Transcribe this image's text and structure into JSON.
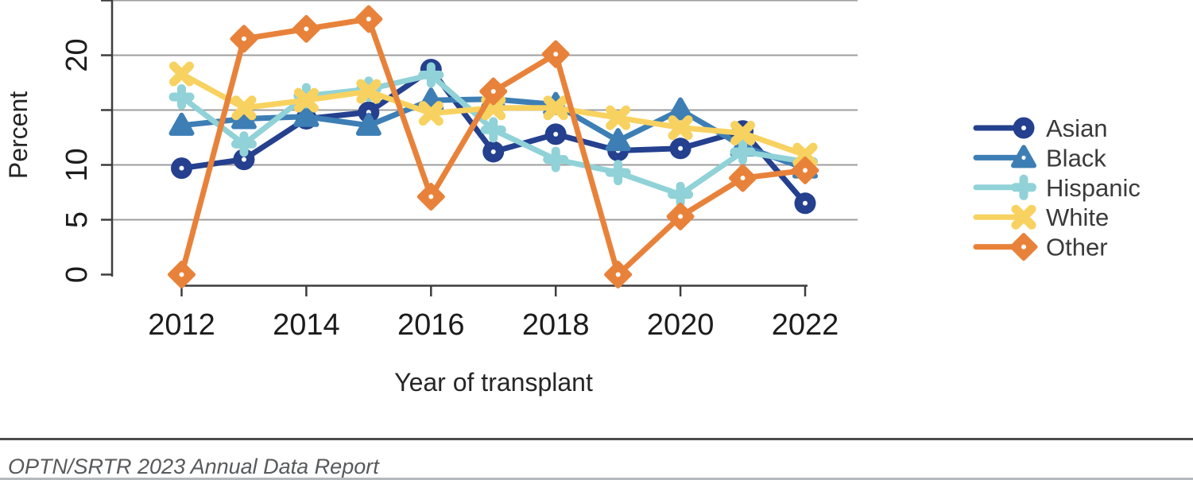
{
  "chart_data": {
    "type": "line",
    "title": "",
    "xlabel": "Year of transplant",
    "ylabel": "Percent",
    "x": [
      2012,
      2013,
      2014,
      2015,
      2016,
      2017,
      2018,
      2019,
      2020,
      2021,
      2022
    ],
    "x_ticks": [
      2012,
      2014,
      2016,
      2018,
      2020,
      2022
    ],
    "y_ticks": [
      0,
      5,
      10,
      15,
      20,
      25
    ],
    "y_tick_labels": [
      "0",
      "5",
      "10",
      "",
      "20",
      ""
    ],
    "ylim": [
      0,
      25.5
    ],
    "grid": true,
    "legend_position": "right",
    "series": [
      {
        "name": "Asian",
        "color": "#24408E",
        "marker": "circle",
        "values": [
          9.7,
          10.5,
          14.2,
          14.8,
          18.7,
          11.2,
          12.8,
          11.3,
          11.5,
          13.1,
          6.5
        ]
      },
      {
        "name": "Black",
        "color": "#3D7EB5",
        "marker": "triangle",
        "values": [
          13.6,
          14.2,
          14.4,
          13.6,
          15.9,
          16.0,
          15.5,
          12.2,
          15.0,
          11.7,
          9.7
        ]
      },
      {
        "name": "Hispanic",
        "color": "#90D2D7",
        "marker": "plus",
        "values": [
          16.2,
          11.9,
          16.3,
          16.9,
          18.2,
          13.2,
          10.5,
          9.3,
          7.3,
          11.2,
          10.3
        ]
      },
      {
        "name": "White",
        "color": "#F8D260",
        "marker": "x",
        "values": [
          18.3,
          15.2,
          15.9,
          16.7,
          14.7,
          15.2,
          15.2,
          14.3,
          13.4,
          12.9,
          10.9
        ]
      },
      {
        "name": "Other",
        "color": "#E8823A",
        "marker": "diamond",
        "values": [
          0,
          21.5,
          22.4,
          23.3,
          7.1,
          16.7,
          20.1,
          0,
          5.3,
          8.8,
          9.5
        ]
      }
    ]
  },
  "footer": {
    "text": "OPTN/SRTR 2023 Annual Data Report"
  }
}
